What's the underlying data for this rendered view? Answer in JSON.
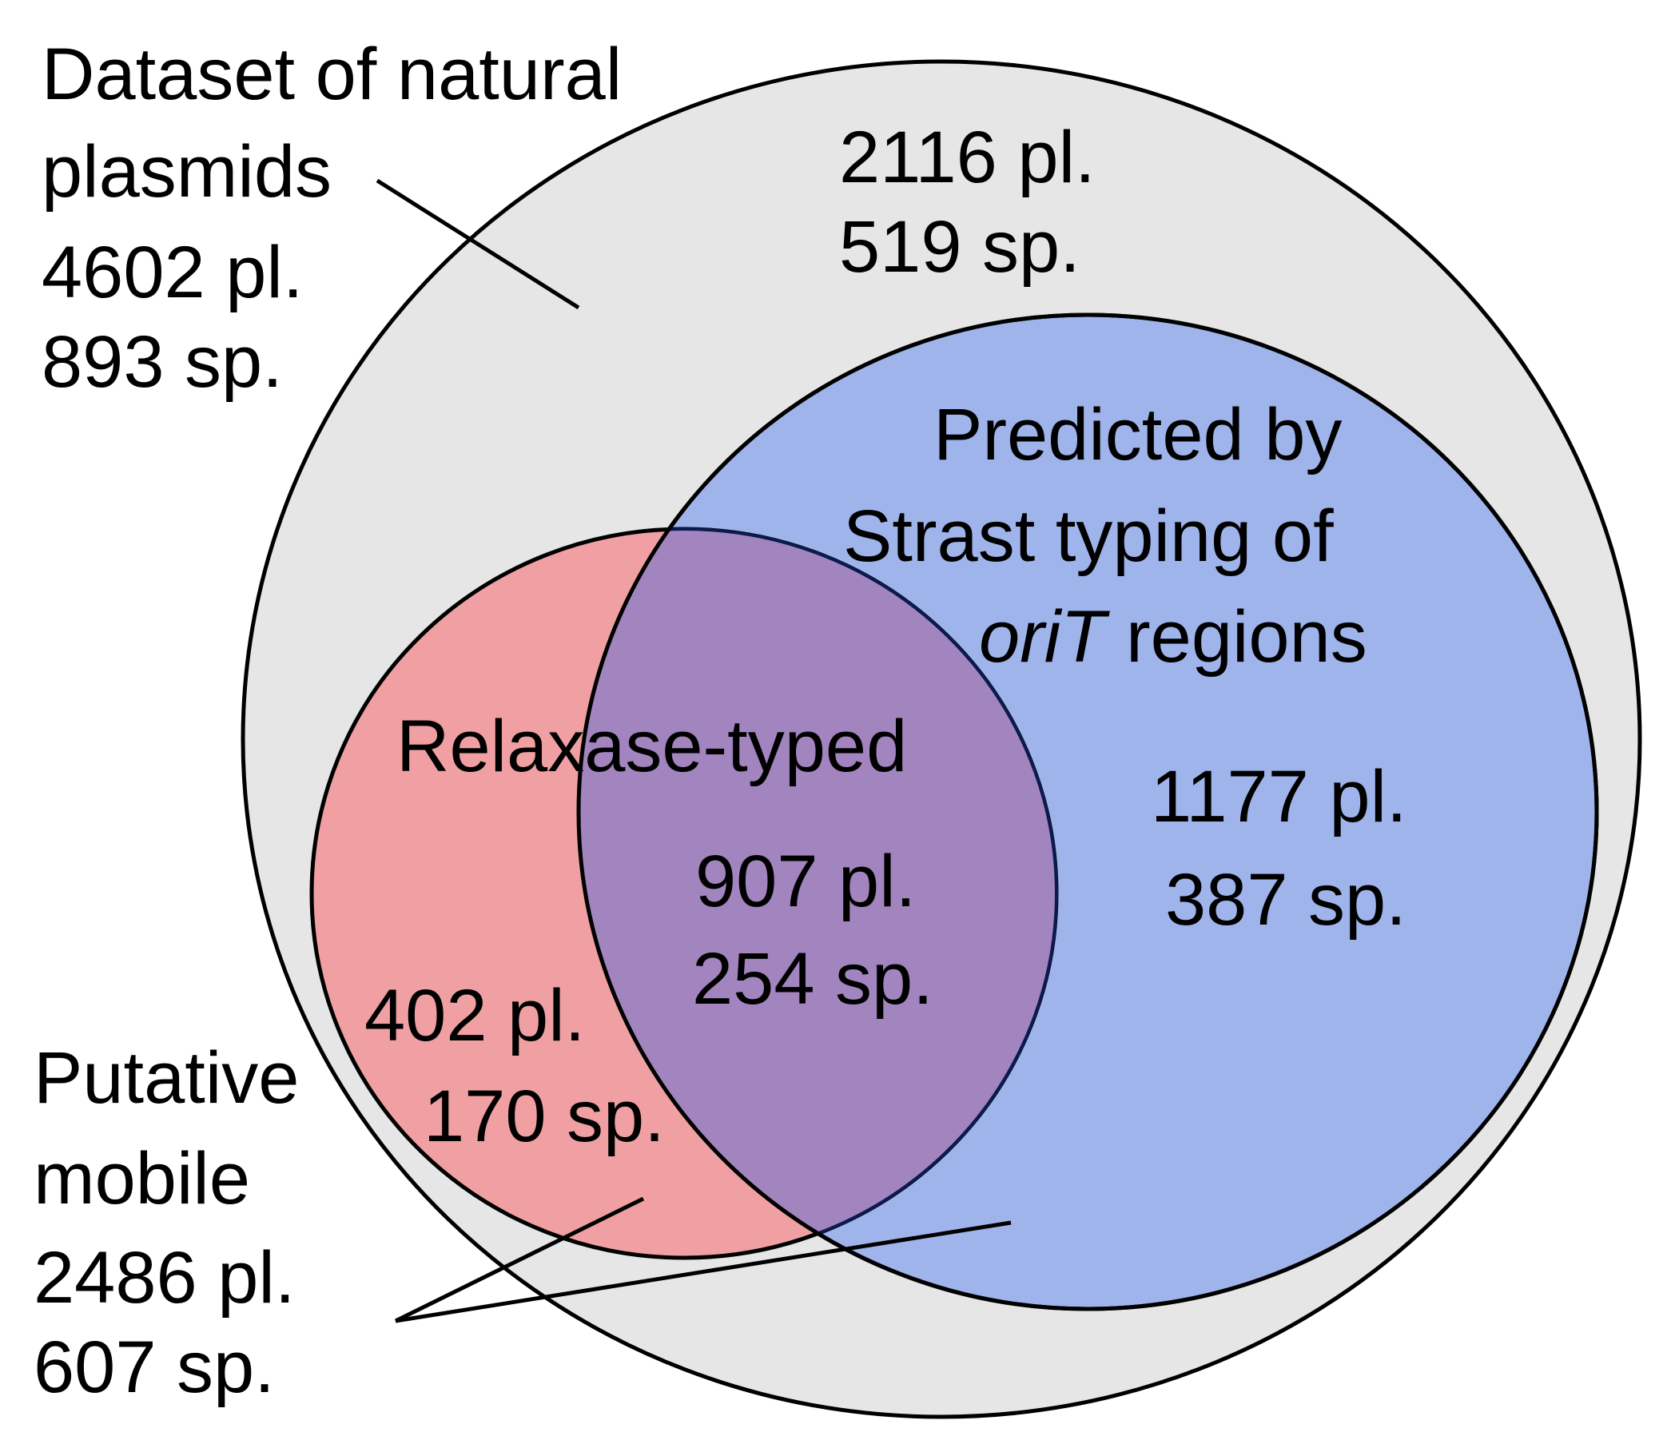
{
  "colors": {
    "dataset_fill": "#e6e6e6",
    "orit_fill": "#a0b4ec",
    "relaxase_fill": "#f0a0a2",
    "overlap_fill": "#a284be",
    "outline": "#000000",
    "overlap_outline": "#0b1a4f"
  },
  "dataset": {
    "title_line1": "Dataset of natural",
    "title_line2": "plasmids",
    "plasmids": "4602 pl.",
    "species": "893 sp.",
    "only_plasmids": "2116 pl.",
    "only_species": "519 sp."
  },
  "orit": {
    "title_line1": "Predicted by",
    "title_line2": "Strast typing of",
    "title_line3_italic": "oriT",
    "title_line3_rest": " regions",
    "only_plasmids": "1177 pl.",
    "only_species": "387 sp."
  },
  "relaxase": {
    "title": "Relaxase-typed",
    "only_plasmids": "402 pl.",
    "only_species": "170 sp."
  },
  "overlap": {
    "plasmids": "907 pl.",
    "species": "254 sp."
  },
  "mobile": {
    "title_line1": "Putative",
    "title_line2": "mobile",
    "plasmids": "2486 pl.",
    "species": "607 sp."
  }
}
